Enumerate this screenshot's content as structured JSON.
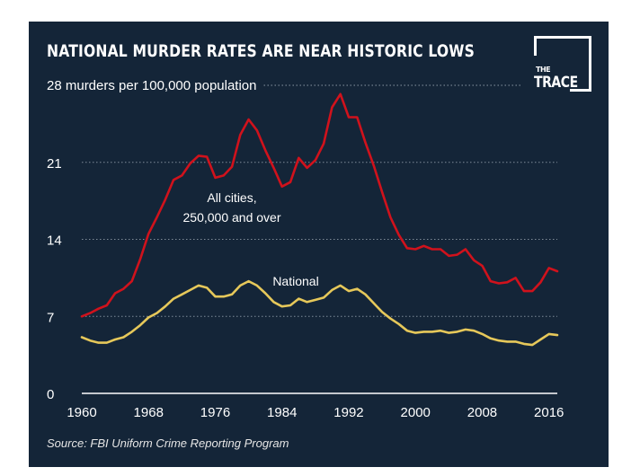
{
  "chart_data": {
    "type": "line",
    "title": "NATIONAL MURDER RATES ARE NEAR HISTORIC LOWS",
    "ylabel": "28 murders per 100,000 population",
    "xlabel": "",
    "source": "Source: FBI Uniform Crime Reporting Program",
    "xlim": [
      1960,
      2017
    ],
    "ylim": [
      0,
      28
    ],
    "x_ticks": [
      1960,
      1968,
      1976,
      1984,
      1992,
      2000,
      2008,
      2016
    ],
    "y_ticks": [
      0,
      7,
      14,
      21
    ],
    "y_tick_labels": [
      "0",
      "7",
      "14",
      "21"
    ],
    "grid": "horizontal dotted",
    "annotations": [
      {
        "lines": [
          "All cities,",
          "250,000 and over"
        ]
      },
      {
        "lines": [
          "National"
        ]
      }
    ],
    "x": [
      1960,
      1961,
      1962,
      1963,
      1964,
      1965,
      1966,
      1967,
      1968,
      1969,
      1970,
      1971,
      1972,
      1973,
      1974,
      1975,
      1976,
      1977,
      1978,
      1979,
      1980,
      1981,
      1982,
      1983,
      1984,
      1985,
      1986,
      1987,
      1988,
      1989,
      1990,
      1991,
      1992,
      1993,
      1994,
      1995,
      1996,
      1997,
      1998,
      1999,
      2000,
      2001,
      2002,
      2003,
      2004,
      2005,
      2006,
      2007,
      2008,
      2009,
      2010,
      2011,
      2012,
      2013,
      2014,
      2015,
      2016,
      2017
    ],
    "series": [
      {
        "name": "All cities, 250,000 and over",
        "color": "#d0121c",
        "values": [
          7.0,
          7.3,
          7.7,
          8.0,
          9.1,
          9.5,
          10.2,
          12.2,
          14.5,
          16.0,
          17.6,
          19.4,
          19.8,
          20.9,
          21.6,
          21.5,
          19.6,
          19.8,
          20.6,
          23.5,
          24.9,
          23.9,
          22.1,
          20.5,
          18.8,
          19.2,
          21.4,
          20.5,
          21.2,
          22.7,
          26.0,
          27.2,
          25.1,
          25.1,
          22.8,
          20.7,
          18.3,
          16.0,
          14.4,
          13.2,
          13.1,
          13.4,
          13.1,
          13.1,
          12.5,
          12.6,
          13.1,
          12.1,
          11.6,
          10.2,
          10.0,
          10.1,
          10.5,
          9.3,
          9.3,
          10.1,
          11.4,
          11.1
        ]
      },
      {
        "name": "National",
        "color": "#e6c85a",
        "values": [
          5.1,
          4.8,
          4.6,
          4.6,
          4.9,
          5.1,
          5.6,
          6.2,
          6.9,
          7.3,
          7.9,
          8.6,
          9.0,
          9.4,
          9.8,
          9.6,
          8.8,
          8.8,
          9.0,
          9.8,
          10.2,
          9.8,
          9.1,
          8.3,
          7.9,
          8.0,
          8.6,
          8.3,
          8.5,
          8.7,
          9.4,
          9.8,
          9.3,
          9.5,
          9.0,
          8.2,
          7.4,
          6.8,
          6.3,
          5.7,
          5.5,
          5.6,
          5.6,
          5.7,
          5.5,
          5.6,
          5.8,
          5.7,
          5.4,
          5.0,
          4.8,
          4.7,
          4.7,
          4.5,
          4.4,
          4.9,
          5.4,
          5.3
        ]
      }
    ]
  },
  "logo": {
    "line1": "THE",
    "line2": "TRACE"
  }
}
